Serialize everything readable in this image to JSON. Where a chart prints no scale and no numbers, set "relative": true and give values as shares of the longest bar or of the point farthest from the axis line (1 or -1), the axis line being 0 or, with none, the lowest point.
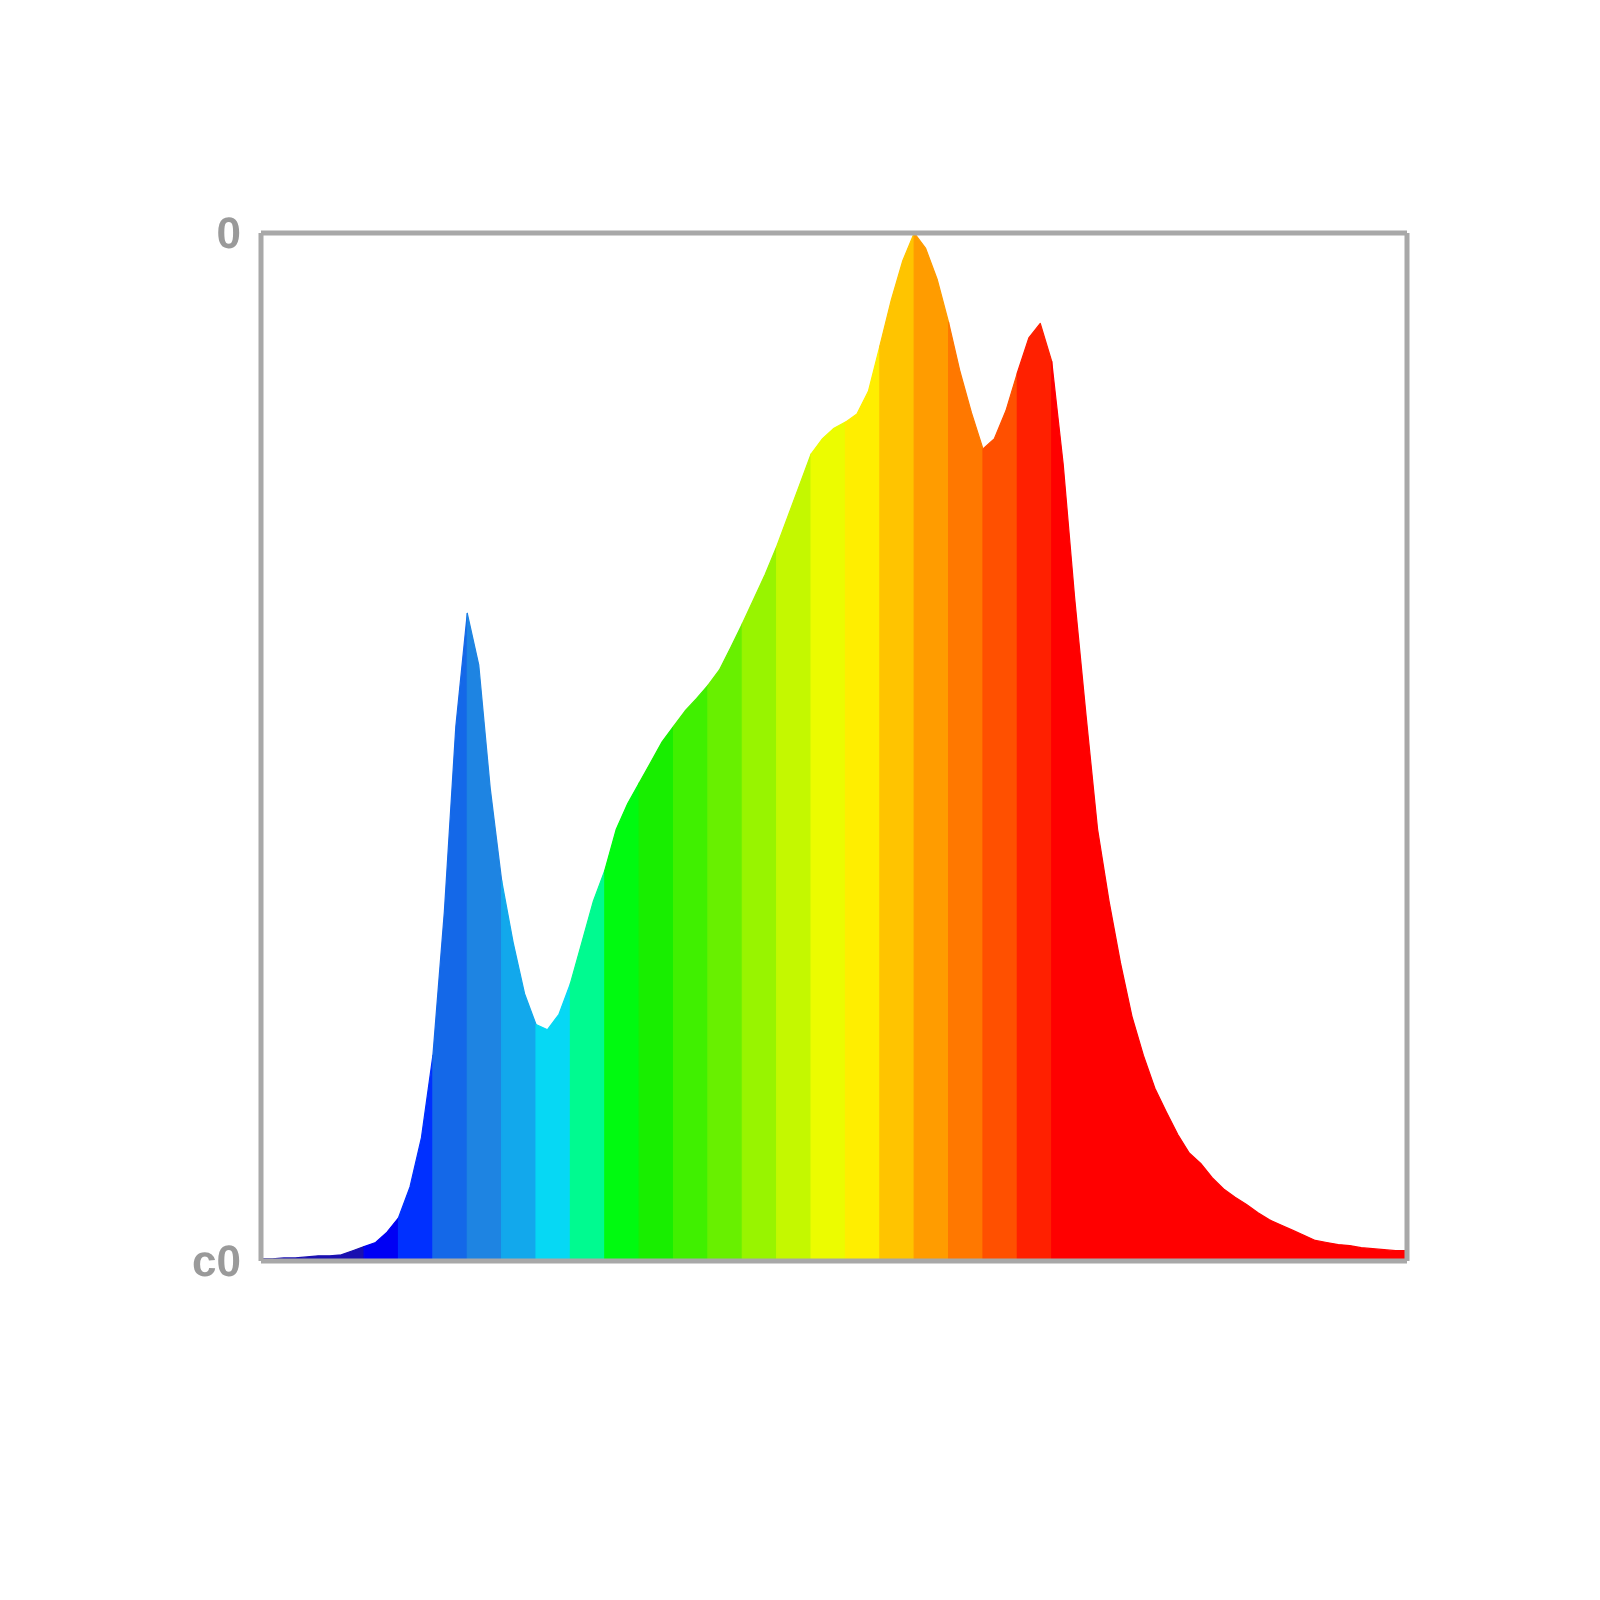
{
  "chart_data": {
    "type": "area",
    "relative": true,
    "categories": [
      null,
      null,
      null,
      null,
      null,
      null,
      null,
      null,
      null,
      null,
      null,
      null,
      null,
      null,
      null,
      null,
      null,
      null,
      null,
      null,
      null,
      null,
      null,
      null,
      null,
      null,
      null,
      null,
      null,
      null,
      null,
      null,
      null,
      null,
      null,
      null,
      null,
      null,
      null,
      null,
      null,
      null,
      null,
      null,
      null,
      null,
      null,
      null,
      null,
      null,
      null,
      null,
      null,
      null,
      null,
      null,
      null,
      null,
      null,
      null,
      null,
      null,
      null,
      null,
      null,
      null,
      null,
      null,
      null,
      null,
      null,
      null,
      null,
      null,
      null,
      null,
      null,
      null,
      null,
      null,
      null,
      null,
      null,
      null,
      null,
      null,
      null,
      null,
      null,
      null,
      null,
      null,
      null,
      null,
      null,
      null,
      null,
      null,
      null,
      null,
      null
    ],
    "series": [
      {
        "color": "#1a10b0",
        "values": [
          0.002,
          0.002,
          0.003,
          0.003,
          0.004,
          0.005,
          0.005,
          0.006,
          0.01,
          0.014,
          null,
          null,
          null,
          null,
          null,
          null,
          null,
          null,
          null,
          null,
          null,
          null,
          null,
          null,
          null,
          null,
          null,
          null,
          null,
          null,
          null,
          null,
          null,
          null,
          null,
          null,
          null,
          null,
          null,
          null,
          null,
          null,
          null,
          null,
          null,
          null,
          null,
          null,
          null,
          null,
          null,
          null,
          null,
          null,
          null,
          null,
          null,
          null,
          null,
          null,
          null,
          null,
          null,
          null,
          null,
          null,
          null,
          null,
          null,
          null,
          null,
          null,
          null,
          null,
          null,
          null,
          null,
          null,
          null,
          null,
          null,
          null,
          null,
          null,
          null,
          null,
          null,
          null,
          null,
          null,
          null,
          null,
          null,
          null,
          null,
          null,
          null,
          null,
          null,
          null,
          null
        ]
      },
      {
        "color": "#0000f4",
        "values": [
          null,
          null,
          null,
          null,
          null,
          null,
          null,
          null,
          null,
          0.014,
          0.018,
          0.028,
          0.042,
          null,
          null,
          null,
          null,
          null,
          null,
          null,
          null,
          null,
          null,
          null,
          null,
          null,
          null,
          null,
          null,
          null,
          null,
          null,
          null,
          null,
          null,
          null,
          null,
          null,
          null,
          null,
          null,
          null,
          null,
          null,
          null,
          null,
          null,
          null,
          null,
          null,
          null,
          null,
          null,
          null,
          null,
          null,
          null,
          null,
          null,
          null,
          null,
          null,
          null,
          null,
          null,
          null,
          null,
          null,
          null,
          null,
          null,
          null,
          null,
          null,
          null,
          null,
          null,
          null,
          null,
          null,
          null,
          null,
          null,
          null,
          null,
          null,
          null,
          null,
          null,
          null,
          null,
          null,
          null,
          null,
          null,
          null,
          null,
          null,
          null,
          null,
          null
        ]
      },
      {
        "color": "#0030ff",
        "values": [
          null,
          null,
          null,
          null,
          null,
          null,
          null,
          null,
          null,
          null,
          null,
          null,
          0.042,
          0.072,
          0.12,
          0.2,
          null,
          null,
          null,
          null,
          null,
          null,
          null,
          null,
          null,
          null,
          null,
          null,
          null,
          null,
          null,
          null,
          null,
          null,
          null,
          null,
          null,
          null,
          null,
          null,
          null,
          null,
          null,
          null,
          null,
          null,
          null,
          null,
          null,
          null,
          null,
          null,
          null,
          null,
          null,
          null,
          null,
          null,
          null,
          null,
          null,
          null,
          null,
          null,
          null,
          null,
          null,
          null,
          null,
          null,
          null,
          null,
          null,
          null,
          null,
          null,
          null,
          null,
          null,
          null,
          null,
          null,
          null,
          null,
          null,
          null,
          null,
          null,
          null,
          null,
          null,
          null,
          null,
          null,
          null,
          null,
          null,
          null,
          null,
          null,
          null
        ]
      },
      {
        "color": "#1468e8",
        "values": [
          null,
          null,
          null,
          null,
          null,
          null,
          null,
          null,
          null,
          null,
          null,
          null,
          null,
          null,
          null,
          0.2,
          0.34,
          0.52,
          0.63,
          null,
          null,
          null,
          null,
          null,
          null,
          null,
          null,
          null,
          null,
          null,
          null,
          null,
          null,
          null,
          null,
          null,
          null,
          null,
          null,
          null,
          null,
          null,
          null,
          null,
          null,
          null,
          null,
          null,
          null,
          null,
          null,
          null,
          null,
          null,
          null,
          null,
          null,
          null,
          null,
          null,
          null,
          null,
          null,
          null,
          null,
          null,
          null,
          null,
          null,
          null,
          null,
          null,
          null,
          null,
          null,
          null,
          null,
          null,
          null,
          null,
          null,
          null,
          null,
          null,
          null,
          null,
          null,
          null,
          null,
          null,
          null,
          null,
          null,
          null,
          null,
          null,
          null,
          null,
          null,
          null,
          null
        ]
      },
      {
        "color": "#1e84e2",
        "values": [
          null,
          null,
          null,
          null,
          null,
          null,
          null,
          null,
          null,
          null,
          null,
          null,
          null,
          null,
          null,
          null,
          null,
          null,
          0.63,
          0.58,
          0.46,
          0.37,
          null,
          null,
          null,
          null,
          null,
          null,
          null,
          null,
          null,
          null,
          null,
          null,
          null,
          null,
          null,
          null,
          null,
          null,
          null,
          null,
          null,
          null,
          null,
          null,
          null,
          null,
          null,
          null,
          null,
          null,
          null,
          null,
          null,
          null,
          null,
          null,
          null,
          null,
          null,
          null,
          null,
          null,
          null,
          null,
          null,
          null,
          null,
          null,
          null,
          null,
          null,
          null,
          null,
          null,
          null,
          null,
          null,
          null,
          null,
          null,
          null,
          null,
          null,
          null,
          null,
          null,
          null,
          null,
          null,
          null,
          null,
          null,
          null,
          null,
          null,
          null,
          null,
          null,
          null
        ]
      },
      {
        "color": "#12a8ec",
        "values": [
          null,
          null,
          null,
          null,
          null,
          null,
          null,
          null,
          null,
          null,
          null,
          null,
          null,
          null,
          null,
          null,
          null,
          null,
          null,
          null,
          null,
          0.37,
          0.31,
          0.26,
          0.23,
          null,
          null,
          null,
          null,
          null,
          null,
          null,
          null,
          null,
          null,
          null,
          null,
          null,
          null,
          null,
          null,
          null,
          null,
          null,
          null,
          null,
          null,
          null,
          null,
          null,
          null,
          null,
          null,
          null,
          null,
          null,
          null,
          null,
          null,
          null,
          null,
          null,
          null,
          null,
          null,
          null,
          null,
          null,
          null,
          null,
          null,
          null,
          null,
          null,
          null,
          null,
          null,
          null,
          null,
          null,
          null,
          null,
          null,
          null,
          null,
          null,
          null,
          null,
          null,
          null,
          null,
          null,
          null,
          null,
          null,
          null,
          null,
          null,
          null,
          null,
          null
        ]
      },
      {
        "color": "#06d8f4",
        "values": [
          null,
          null,
          null,
          null,
          null,
          null,
          null,
          null,
          null,
          null,
          null,
          null,
          null,
          null,
          null,
          null,
          null,
          null,
          null,
          null,
          null,
          null,
          null,
          null,
          0.23,
          0.225,
          0.24,
          0.27,
          null,
          null,
          null,
          null,
          null,
          null,
          null,
          null,
          null,
          null,
          null,
          null,
          null,
          null,
          null,
          null,
          null,
          null,
          null,
          null,
          null,
          null,
          null,
          null,
          null,
          null,
          null,
          null,
          null,
          null,
          null,
          null,
          null,
          null,
          null,
          null,
          null,
          null,
          null,
          null,
          null,
          null,
          null,
          null,
          null,
          null,
          null,
          null,
          null,
          null,
          null,
          null,
          null,
          null,
          null,
          null,
          null,
          null,
          null,
          null,
          null,
          null,
          null,
          null,
          null,
          null,
          null,
          null,
          null,
          null,
          null,
          null,
          null
        ]
      },
      {
        "color": "#00fa90",
        "values": [
          null,
          null,
          null,
          null,
          null,
          null,
          null,
          null,
          null,
          null,
          null,
          null,
          null,
          null,
          null,
          null,
          null,
          null,
          null,
          null,
          null,
          null,
          null,
          null,
          null,
          null,
          null,
          0.27,
          0.31,
          0.35,
          0.38,
          null,
          null,
          null,
          null,
          null,
          null,
          null,
          null,
          null,
          null,
          null,
          null,
          null,
          null,
          null,
          null,
          null,
          null,
          null,
          null,
          null,
          null,
          null,
          null,
          null,
          null,
          null,
          null,
          null,
          null,
          null,
          null,
          null,
          null,
          null,
          null,
          null,
          null,
          null,
          null,
          null,
          null,
          null,
          null,
          null,
          null,
          null,
          null,
          null,
          null,
          null,
          null,
          null,
          null,
          null,
          null,
          null,
          null,
          null,
          null,
          null,
          null,
          null,
          null,
          null,
          null,
          null,
          null,
          null,
          null
        ]
      },
      {
        "color": "#00fa10",
        "values": [
          null,
          null,
          null,
          null,
          null,
          null,
          null,
          null,
          null,
          null,
          null,
          null,
          null,
          null,
          null,
          null,
          null,
          null,
          null,
          null,
          null,
          null,
          null,
          null,
          null,
          null,
          null,
          null,
          null,
          null,
          0.38,
          0.42,
          0.445,
          0.465,
          null,
          null,
          null,
          null,
          null,
          null,
          null,
          null,
          null,
          null,
          null,
          null,
          null,
          null,
          null,
          null,
          null,
          null,
          null,
          null,
          null,
          null,
          null,
          null,
          null,
          null,
          null,
          null,
          null,
          null,
          null,
          null,
          null,
          null,
          null,
          null,
          null,
          null,
          null,
          null,
          null,
          null,
          null,
          null,
          null,
          null,
          null,
          null,
          null,
          null,
          null,
          null,
          null,
          null,
          null,
          null,
          null,
          null,
          null,
          null,
          null,
          null,
          null,
          null,
          null,
          null,
          null
        ]
      },
      {
        "color": "#18ee00",
        "values": [
          null,
          null,
          null,
          null,
          null,
          null,
          null,
          null,
          null,
          null,
          null,
          null,
          null,
          null,
          null,
          null,
          null,
          null,
          null,
          null,
          null,
          null,
          null,
          null,
          null,
          null,
          null,
          null,
          null,
          null,
          null,
          null,
          null,
          0.465,
          0.485,
          0.505,
          0.52,
          null,
          null,
          null,
          null,
          null,
          null,
          null,
          null,
          null,
          null,
          null,
          null,
          null,
          null,
          null,
          null,
          null,
          null,
          null,
          null,
          null,
          null,
          null,
          null,
          null,
          null,
          null,
          null,
          null,
          null,
          null,
          null,
          null,
          null,
          null,
          null,
          null,
          null,
          null,
          null,
          null,
          null,
          null,
          null,
          null,
          null,
          null,
          null,
          null,
          null,
          null,
          null,
          null,
          null,
          null,
          null,
          null,
          null,
          null,
          null,
          null,
          null,
          null,
          null
        ]
      },
      {
        "color": "#40f000",
        "values": [
          null,
          null,
          null,
          null,
          null,
          null,
          null,
          null,
          null,
          null,
          null,
          null,
          null,
          null,
          null,
          null,
          null,
          null,
          null,
          null,
          null,
          null,
          null,
          null,
          null,
          null,
          null,
          null,
          null,
          null,
          null,
          null,
          null,
          null,
          null,
          null,
          0.52,
          0.535,
          0.547,
          0.56,
          null,
          null,
          null,
          null,
          null,
          null,
          null,
          null,
          null,
          null,
          null,
          null,
          null,
          null,
          null,
          null,
          null,
          null,
          null,
          null,
          null,
          null,
          null,
          null,
          null,
          null,
          null,
          null,
          null,
          null,
          null,
          null,
          null,
          null,
          null,
          null,
          null,
          null,
          null,
          null,
          null,
          null,
          null,
          null,
          null,
          null,
          null,
          null,
          null,
          null,
          null,
          null,
          null,
          null,
          null,
          null,
          null,
          null,
          null,
          null,
          null
        ]
      },
      {
        "color": "#68f000",
        "values": [
          null,
          null,
          null,
          null,
          null,
          null,
          null,
          null,
          null,
          null,
          null,
          null,
          null,
          null,
          null,
          null,
          null,
          null,
          null,
          null,
          null,
          null,
          null,
          null,
          null,
          null,
          null,
          null,
          null,
          null,
          null,
          null,
          null,
          null,
          null,
          null,
          null,
          null,
          null,
          0.56,
          0.575,
          0.597,
          0.62,
          null,
          null,
          null,
          null,
          null,
          null,
          null,
          null,
          null,
          null,
          null,
          null,
          null,
          null,
          null,
          null,
          null,
          null,
          null,
          null,
          null,
          null,
          null,
          null,
          null,
          null,
          null,
          null,
          null,
          null,
          null,
          null,
          null,
          null,
          null,
          null,
          null,
          null,
          null,
          null,
          null,
          null,
          null,
          null,
          null,
          null,
          null,
          null,
          null,
          null,
          null,
          null,
          null,
          null,
          null,
          null,
          null,
          null
        ]
      },
      {
        "color": "#98f400",
        "values": [
          null,
          null,
          null,
          null,
          null,
          null,
          null,
          null,
          null,
          null,
          null,
          null,
          null,
          null,
          null,
          null,
          null,
          null,
          null,
          null,
          null,
          null,
          null,
          null,
          null,
          null,
          null,
          null,
          null,
          null,
          null,
          null,
          null,
          null,
          null,
          null,
          null,
          null,
          null,
          null,
          null,
          null,
          0.62,
          0.644,
          0.668,
          0.695,
          null,
          null,
          null,
          null,
          null,
          null,
          null,
          null,
          null,
          null,
          null,
          null,
          null,
          null,
          null,
          null,
          null,
          null,
          null,
          null,
          null,
          null,
          null,
          null,
          null,
          null,
          null,
          null,
          null,
          null,
          null,
          null,
          null,
          null,
          null,
          null,
          null,
          null,
          null,
          null,
          null,
          null,
          null,
          null,
          null,
          null,
          null,
          null,
          null,
          null,
          null,
          null,
          null,
          null,
          null
        ]
      },
      {
        "color": "#c4f800",
        "values": [
          null,
          null,
          null,
          null,
          null,
          null,
          null,
          null,
          null,
          null,
          null,
          null,
          null,
          null,
          null,
          null,
          null,
          null,
          null,
          null,
          null,
          null,
          null,
          null,
          null,
          null,
          null,
          null,
          null,
          null,
          null,
          null,
          null,
          null,
          null,
          null,
          null,
          null,
          null,
          null,
          null,
          null,
          null,
          null,
          null,
          0.695,
          0.725,
          0.755,
          0.785,
          null,
          null,
          null,
          null,
          null,
          null,
          null,
          null,
          null,
          null,
          null,
          null,
          null,
          null,
          null,
          null,
          null,
          null,
          null,
          null,
          null,
          null,
          null,
          null,
          null,
          null,
          null,
          null,
          null,
          null,
          null,
          null,
          null,
          null,
          null,
          null,
          null,
          null,
          null,
          null,
          null,
          null,
          null,
          null,
          null,
          null,
          null,
          null,
          null,
          null,
          null,
          null
        ]
      },
      {
        "color": "#ecfc00",
        "values": [
          null,
          null,
          null,
          null,
          null,
          null,
          null,
          null,
          null,
          null,
          null,
          null,
          null,
          null,
          null,
          null,
          null,
          null,
          null,
          null,
          null,
          null,
          null,
          null,
          null,
          null,
          null,
          null,
          null,
          null,
          null,
          null,
          null,
          null,
          null,
          null,
          null,
          null,
          null,
          null,
          null,
          null,
          null,
          null,
          null,
          null,
          null,
          null,
          0.785,
          0.8,
          0.81,
          0.816,
          null,
          null,
          null,
          null,
          null,
          null,
          null,
          null,
          null,
          null,
          null,
          null,
          null,
          null,
          null,
          null,
          null,
          null,
          null,
          null,
          null,
          null,
          null,
          null,
          null,
          null,
          null,
          null,
          null,
          null,
          null,
          null,
          null,
          null,
          null,
          null,
          null,
          null,
          null,
          null,
          null,
          null,
          null,
          null,
          null,
          null,
          null,
          null,
          null
        ]
      },
      {
        "color": "#ffee00",
        "values": [
          null,
          null,
          null,
          null,
          null,
          null,
          null,
          null,
          null,
          null,
          null,
          null,
          null,
          null,
          null,
          null,
          null,
          null,
          null,
          null,
          null,
          null,
          null,
          null,
          null,
          null,
          null,
          null,
          null,
          null,
          null,
          null,
          null,
          null,
          null,
          null,
          null,
          null,
          null,
          null,
          null,
          null,
          null,
          null,
          null,
          null,
          null,
          null,
          null,
          null,
          null,
          0.816,
          0.824,
          0.846,
          0.89,
          null,
          null,
          null,
          null,
          null,
          null,
          null,
          null,
          null,
          null,
          null,
          null,
          null,
          null,
          null,
          null,
          null,
          null,
          null,
          null,
          null,
          null,
          null,
          null,
          null,
          null,
          null,
          null,
          null,
          null,
          null,
          null,
          null,
          null,
          null,
          null,
          null,
          null,
          null,
          null,
          null,
          null,
          null,
          null,
          null,
          null
        ]
      },
      {
        "color": "#ffc400",
        "values": [
          null,
          null,
          null,
          null,
          null,
          null,
          null,
          null,
          null,
          null,
          null,
          null,
          null,
          null,
          null,
          null,
          null,
          null,
          null,
          null,
          null,
          null,
          null,
          null,
          null,
          null,
          null,
          null,
          null,
          null,
          null,
          null,
          null,
          null,
          null,
          null,
          null,
          null,
          null,
          null,
          null,
          null,
          null,
          null,
          null,
          null,
          null,
          null,
          null,
          null,
          null,
          null,
          null,
          null,
          0.89,
          0.935,
          0.973,
          1.0,
          null,
          null,
          null,
          null,
          null,
          null,
          null,
          null,
          null,
          null,
          null,
          null,
          null,
          null,
          null,
          null,
          null,
          null,
          null,
          null,
          null,
          null,
          null,
          null,
          null,
          null,
          null,
          null,
          null,
          null,
          null,
          null,
          null,
          null,
          null,
          null,
          null,
          null,
          null,
          null,
          null,
          null,
          null
        ]
      },
      {
        "color": "#ff9c00",
        "values": [
          null,
          null,
          null,
          null,
          null,
          null,
          null,
          null,
          null,
          null,
          null,
          null,
          null,
          null,
          null,
          null,
          null,
          null,
          null,
          null,
          null,
          null,
          null,
          null,
          null,
          null,
          null,
          null,
          null,
          null,
          null,
          null,
          null,
          null,
          null,
          null,
          null,
          null,
          null,
          null,
          null,
          null,
          null,
          null,
          null,
          null,
          null,
          null,
          null,
          null,
          null,
          null,
          null,
          null,
          null,
          null,
          null,
          1.0,
          0.985,
          0.955,
          0.913,
          null,
          null,
          null,
          null,
          null,
          null,
          null,
          null,
          null,
          null,
          null,
          null,
          null,
          null,
          null,
          null,
          null,
          null,
          null,
          null,
          null,
          null,
          null,
          null,
          null,
          null,
          null,
          null,
          null,
          null,
          null,
          null,
          null,
          null,
          null,
          null,
          null,
          null,
          null,
          null
        ]
      },
      {
        "color": "#ff7800",
        "values": [
          null,
          null,
          null,
          null,
          null,
          null,
          null,
          null,
          null,
          null,
          null,
          null,
          null,
          null,
          null,
          null,
          null,
          null,
          null,
          null,
          null,
          null,
          null,
          null,
          null,
          null,
          null,
          null,
          null,
          null,
          null,
          null,
          null,
          null,
          null,
          null,
          null,
          null,
          null,
          null,
          null,
          null,
          null,
          null,
          null,
          null,
          null,
          null,
          null,
          null,
          null,
          null,
          null,
          null,
          null,
          null,
          null,
          null,
          null,
          null,
          0.913,
          0.865,
          0.825,
          0.79,
          null,
          null,
          null,
          null,
          null,
          null,
          null,
          null,
          null,
          null,
          null,
          null,
          null,
          null,
          null,
          null,
          null,
          null,
          null,
          null,
          null,
          null,
          null,
          null,
          null,
          null,
          null,
          null,
          null,
          null,
          null,
          null,
          null,
          null,
          null,
          null,
          null
        ]
      },
      {
        "color": "#ff5000",
        "values": [
          null,
          null,
          null,
          null,
          null,
          null,
          null,
          null,
          null,
          null,
          null,
          null,
          null,
          null,
          null,
          null,
          null,
          null,
          null,
          null,
          null,
          null,
          null,
          null,
          null,
          null,
          null,
          null,
          null,
          null,
          null,
          null,
          null,
          null,
          null,
          null,
          null,
          null,
          null,
          null,
          null,
          null,
          null,
          null,
          null,
          null,
          null,
          null,
          null,
          null,
          null,
          null,
          null,
          null,
          null,
          null,
          null,
          null,
          null,
          null,
          null,
          null,
          null,
          0.79,
          0.8,
          0.827,
          0.864,
          null,
          null,
          null,
          null,
          null,
          null,
          null,
          null,
          null,
          null,
          null,
          null,
          null,
          null,
          null,
          null,
          null,
          null,
          null,
          null,
          null,
          null,
          null,
          null,
          null,
          null,
          null,
          null,
          null,
          null,
          null,
          null,
          null,
          null
        ]
      },
      {
        "color": "#ff2000",
        "values": [
          null,
          null,
          null,
          null,
          null,
          null,
          null,
          null,
          null,
          null,
          null,
          null,
          null,
          null,
          null,
          null,
          null,
          null,
          null,
          null,
          null,
          null,
          null,
          null,
          null,
          null,
          null,
          null,
          null,
          null,
          null,
          null,
          null,
          null,
          null,
          null,
          null,
          null,
          null,
          null,
          null,
          null,
          null,
          null,
          null,
          null,
          null,
          null,
          null,
          null,
          null,
          null,
          null,
          null,
          null,
          null,
          null,
          null,
          null,
          null,
          null,
          null,
          null,
          null,
          null,
          null,
          0.864,
          0.898,
          0.912,
          0.875,
          null,
          null,
          null,
          null,
          null,
          null,
          null,
          null,
          null,
          null,
          null,
          null,
          null,
          null,
          null,
          null,
          null,
          null,
          null,
          null,
          null,
          null,
          null,
          null,
          null,
          null,
          null,
          null,
          null,
          null,
          null
        ]
      },
      {
        "color": "#ff0000",
        "values": [
          null,
          null,
          null,
          null,
          null,
          null,
          null,
          null,
          null,
          null,
          null,
          null,
          null,
          null,
          null,
          null,
          null,
          null,
          null,
          null,
          null,
          null,
          null,
          null,
          null,
          null,
          null,
          null,
          null,
          null,
          null,
          null,
          null,
          null,
          null,
          null,
          null,
          null,
          null,
          null,
          null,
          null,
          null,
          null,
          null,
          null,
          null,
          null,
          null,
          null,
          null,
          null,
          null,
          null,
          null,
          null,
          null,
          null,
          null,
          null,
          null,
          null,
          null,
          null,
          null,
          null,
          null,
          null,
          null,
          0.875,
          0.775,
          0.645,
          0.53,
          0.42,
          0.35,
          0.29,
          0.238,
          0.2,
          0.168,
          0.145,
          0.123,
          0.105,
          0.095,
          0.081,
          0.07,
          0.062,
          0.055,
          0.047,
          0.04,
          0.035,
          0.03,
          0.025,
          0.02,
          0.018,
          0.016,
          0.015,
          0.013,
          0.012,
          0.011,
          0.01,
          0.01
        ]
      }
    ],
    "annotations": [
      "0",
      "c0"
    ]
  }
}
